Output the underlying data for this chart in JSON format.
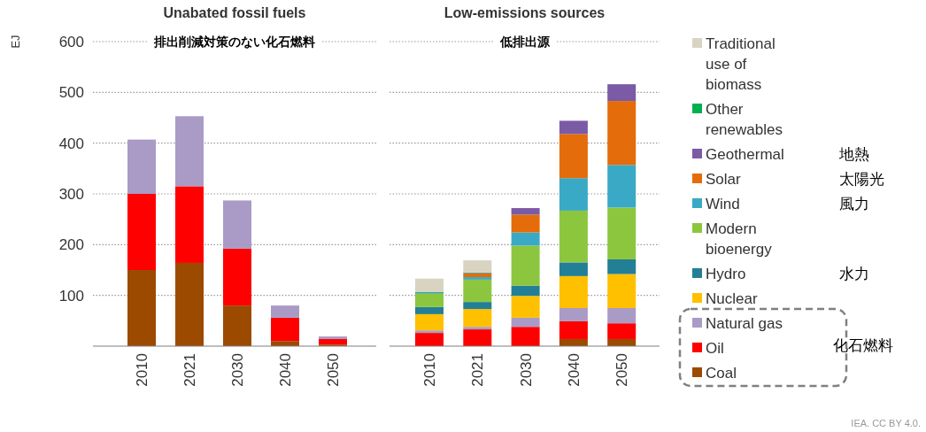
{
  "chart_data": [
    {
      "type": "bar",
      "stacked": true,
      "title": "Unabated fossil fuels",
      "subtitle": "排出削減対策のない化石燃料",
      "ylabel": "EJ",
      "categories": [
        "2010",
        "2021",
        "2030",
        "2040",
        "2050"
      ],
      "ylim": [
        0,
        600
      ],
      "yticks": [
        100,
        200,
        300,
        400,
        500,
        600
      ],
      "grid": "y",
      "series": [
        {
          "color": "#9c4a00",
          "values": [
            150,
            164,
            80,
            10,
            3
          ]
        },
        {
          "color": "#ff0000",
          "values": [
            150,
            151,
            112,
            46,
            11
          ]
        },
        {
          "color": "#a99bc6",
          "values": [
            107,
            138,
            95,
            24,
            5
          ]
        }
      ]
    },
    {
      "type": "bar",
      "stacked": true,
      "title": "Low-emissions sources",
      "subtitle": "低排出源",
      "categories": [
        "2010",
        "2021",
        "2030",
        "2040",
        "2050"
      ],
      "ylim": [
        0,
        600
      ],
      "yticks": [
        100,
        200,
        300,
        400,
        500,
        600
      ],
      "grid": "y",
      "tick_labels": "x",
      "legend": "right",
      "series": [
        {
          "name": "Coal",
          "color": "#9c4a00",
          "values": [
            0,
            null,
            null,
            14,
            14
          ]
        },
        {
          "name": "Oil",
          "color": "#ff0000",
          "values": [
            26,
            33,
            38,
            35,
            31
          ]
        },
        {
          "name": "Natural gas",
          "color": "#a99bc6",
          "values": [
            5,
            5,
            18,
            26,
            30
          ]
        },
        {
          "name": "Nuclear",
          "color": "#ffc000",
          "values": [
            32,
            35,
            43,
            63,
            67
          ]
        },
        {
          "name": "Hydro",
          "color": "#237f95",
          "values": [
            14,
            14,
            20,
            27,
            29
          ]
        },
        {
          "name": "Modern bioenergy",
          "color": "#8cc63f",
          "values": [
            26,
            44,
            79,
            102,
            102
          ]
        },
        {
          "name": "Wind",
          "color": "#3aa9c6",
          "values": [
            1,
            5,
            26,
            64,
            84
          ]
        },
        {
          "name": "Solar",
          "color": "#e46c0a",
          "values": [
            0,
            7,
            35,
            87,
            126
          ]
        },
        {
          "name": "Geothermal",
          "color": "#7b5aa6",
          "values": [
            1,
            1,
            13,
            26,
            33
          ]
        },
        {
          "name": "Other renewables",
          "color": "#00b050",
          "values": [
            2,
            1,
            0,
            0,
            0
          ]
        },
        {
          "name": "Traditional use of biomass",
          "color": "#d9d4c2",
          "values": [
            26,
            24,
            0,
            0,
            0
          ]
        }
      ],
      "annotations": [
        "地熱",
        "太陽光",
        "風力",
        "水力",
        "化石燃料",
        "IEA. CC BY 4.0."
      ]
    }
  ]
}
